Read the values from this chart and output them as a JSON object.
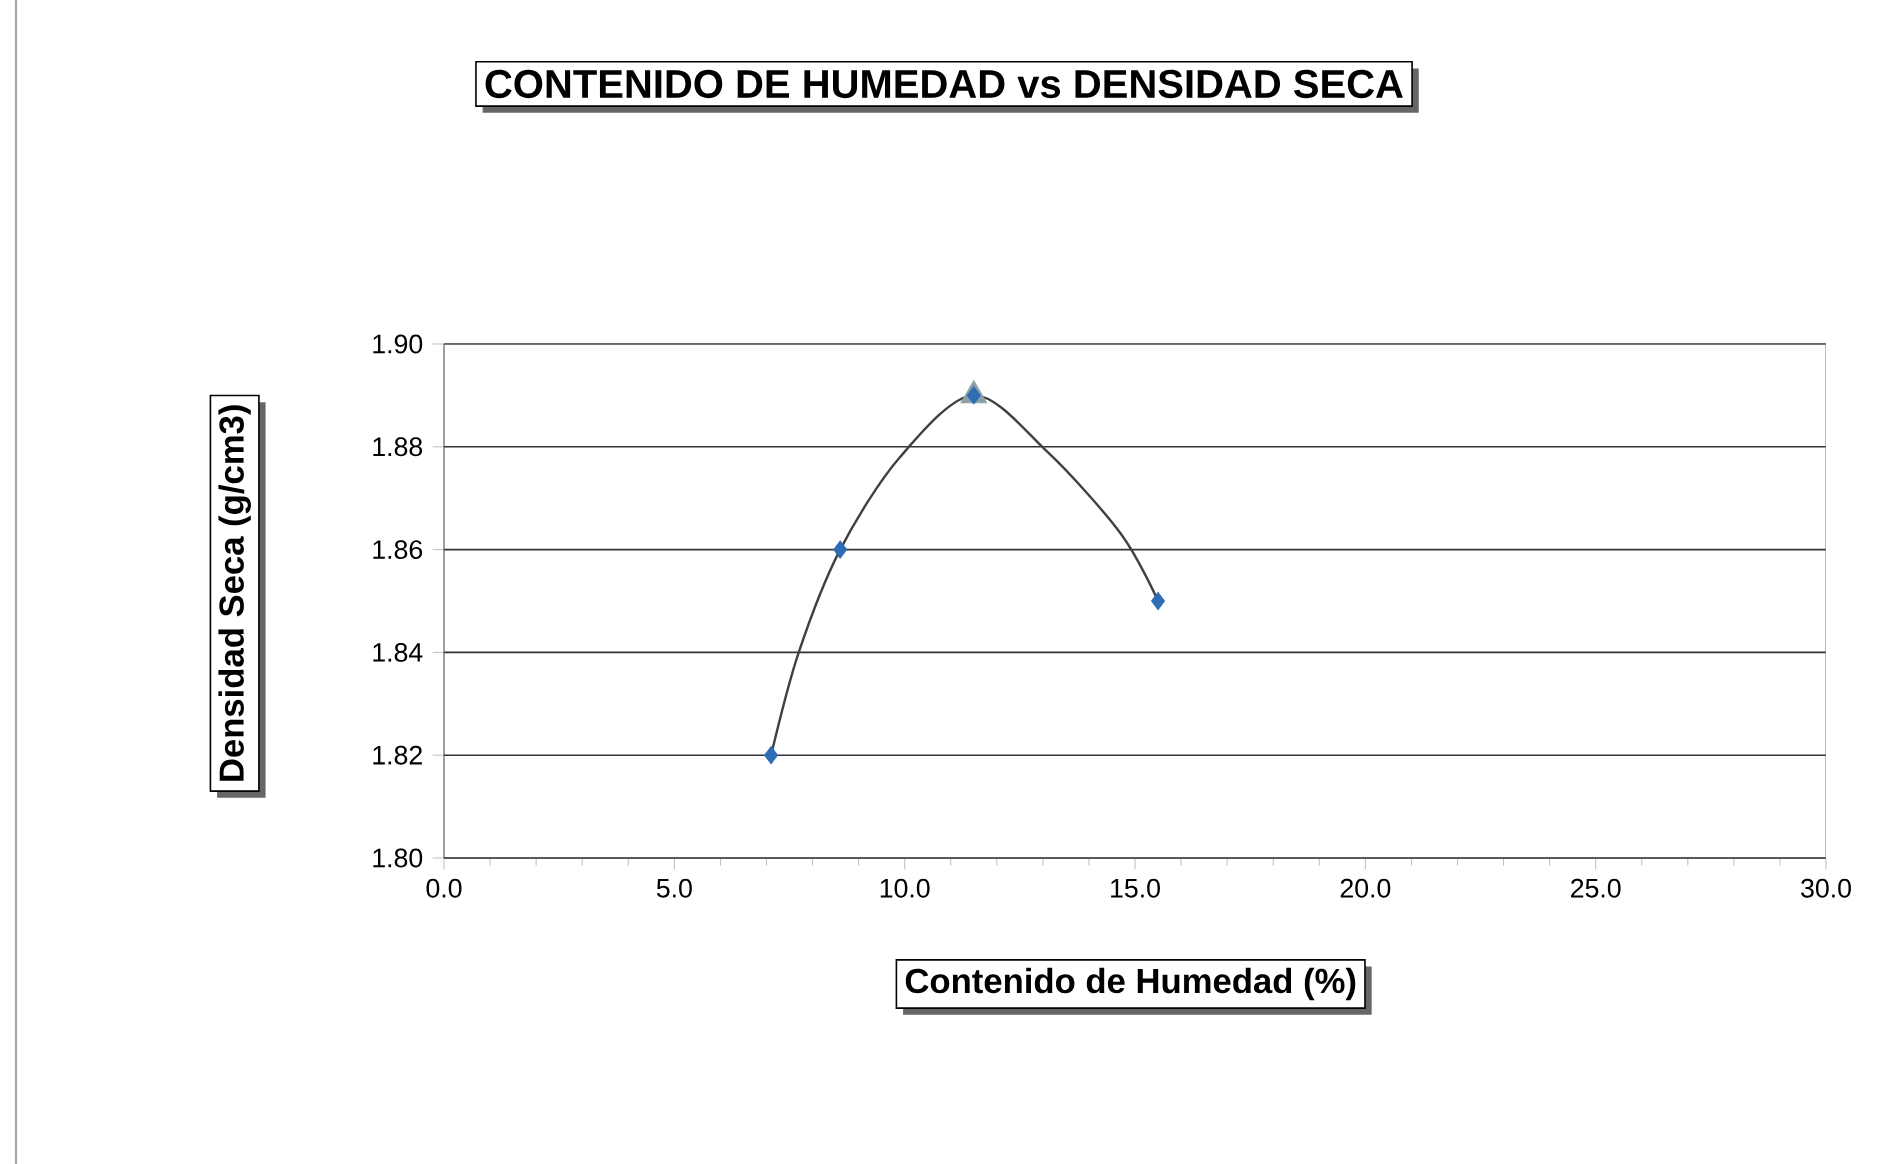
{
  "chart_data": {
    "type": "scatter",
    "title": "CONTENIDO DE HUMEDAD vs DENSIDAD SECA",
    "xlabel": "Contenido de Humedad (%)",
    "ylabel": "Densidad Seca (g/cm3)",
    "series": [
      {
        "type": "line",
        "color": "#404040",
        "marker": "none",
        "x": [
          7.1,
          7.7,
          8.6,
          9.9,
          11.5,
          13.1,
          14.7,
          15.5
        ],
        "values": [
          1.82,
          1.84,
          1.86,
          1.878,
          1.89,
          1.879,
          1.863,
          1.85
        ]
      },
      {
        "color": "#8aa0a8",
        "marker": "triangle",
        "x": [
          11.5
        ],
        "values": [
          1.89
        ]
      },
      {
        "color": "#2e6db4",
        "marker": "diamond",
        "x": [
          7.1,
          8.6,
          11.5,
          15.5
        ],
        "values": [
          1.82,
          1.86,
          1.89,
          1.85
        ]
      }
    ],
    "xlim": [
      0,
      30
    ],
    "ylim": [
      1.8,
      1.9
    ],
    "xticks": [
      {
        "value": 0,
        "label": "0.0"
      },
      {
        "value": 5,
        "label": "5.0"
      },
      {
        "value": 10,
        "label": "10.0"
      },
      {
        "value": 15,
        "label": "15.0"
      },
      {
        "value": 20,
        "label": "20.0"
      },
      {
        "value": 25,
        "label": "25.0"
      },
      {
        "value": 30,
        "label": "30.0"
      }
    ],
    "yticks": [
      {
        "value": 1.8,
        "label": "1.80"
      },
      {
        "value": 1.82,
        "label": "1.82"
      },
      {
        "value": 1.84,
        "label": "1.84"
      },
      {
        "value": 1.86,
        "label": "1.86"
      },
      {
        "value": 1.88,
        "label": "1.88"
      },
      {
        "value": 1.9,
        "label": "1.90"
      }
    ],
    "grid": "y"
  }
}
